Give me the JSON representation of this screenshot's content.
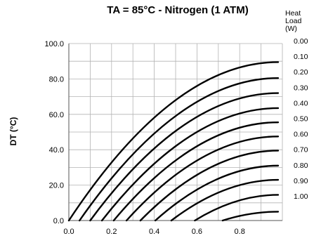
{
  "chart_data": {
    "type": "line",
    "title": "TA = 85°C - Nitrogen (1 ATM)",
    "ylabel": "DT (°C)",
    "xlabel": "",
    "legend_title": [
      "Heat",
      "Load",
      "(W)"
    ],
    "xlim": [
      0.0,
      1.0
    ],
    "ylim": [
      0.0,
      100.0
    ],
    "x_ticks": [
      "0.0",
      "0.2",
      "0.4",
      "0.6",
      "0.8"
    ],
    "y_ticks": [
      "0.0",
      "20.0",
      "40.0",
      "60.0",
      "80.0",
      "100.0"
    ],
    "grid": true,
    "legend_placement": "right",
    "line_color": "#000000",
    "curve_x_end": 0.98,
    "series": [
      {
        "name": "0.00",
        "x_start": 0.0,
        "end_dt": 89.5
      },
      {
        "name": "0.10",
        "x_start": 0.05,
        "end_dt": 80.5
      },
      {
        "name": "0.20",
        "x_start": 0.1,
        "end_dt": 72.0
      },
      {
        "name": "0.30",
        "x_start": 0.155,
        "end_dt": 63.5
      },
      {
        "name": "0.40",
        "x_start": 0.21,
        "end_dt": 55.5
      },
      {
        "name": "0.50",
        "x_start": 0.27,
        "end_dt": 47.5
      },
      {
        "name": "0.60",
        "x_start": 0.335,
        "end_dt": 39.5
      },
      {
        "name": "0.70",
        "x_start": 0.405,
        "end_dt": 31.0
      },
      {
        "name": "0.80",
        "x_start": 0.48,
        "end_dt": 23.0
      },
      {
        "name": "0.90",
        "x_start": 0.59,
        "end_dt": 14.5
      },
      {
        "name": "1.00",
        "x_start": 0.72,
        "end_dt": 5.0
      }
    ]
  }
}
